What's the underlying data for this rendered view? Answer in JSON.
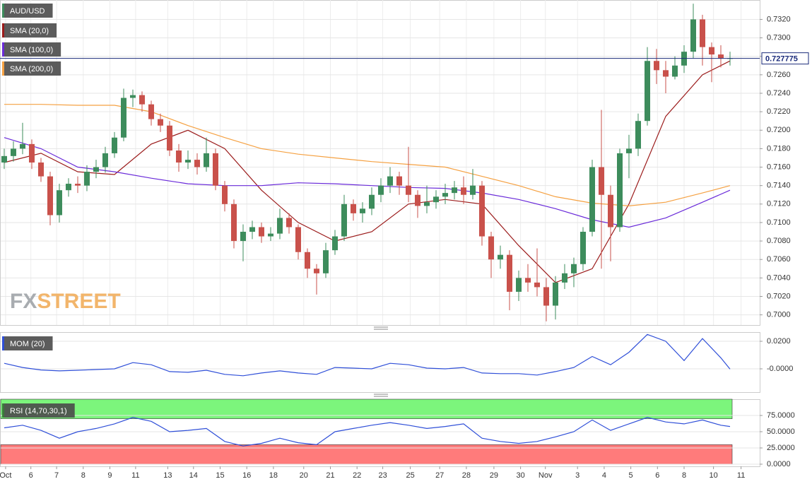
{
  "watermark": [
    "FX",
    "STREET"
  ],
  "chart_data": [
    {
      "type": "candlestick",
      "title": "AUD/USD",
      "color": "#3d8c5c",
      "down_color": "#c9514b",
      "grid": true,
      "last_price": 0.727775,
      "xlim": [
        -0.46,
        82.23
      ],
      "xticks": [
        {
          "value": 0.15,
          "label": "Oct"
        },
        {
          "value": 2.9,
          "label": "6"
        },
        {
          "value": 5.7,
          "label": "7"
        },
        {
          "value": 8.6,
          "label": "8"
        },
        {
          "value": 11.5,
          "label": "9"
        },
        {
          "value": 14.3,
          "label": "11"
        },
        {
          "value": 17.8,
          "label": "13"
        },
        {
          "value": 20.6,
          "label": "14"
        },
        {
          "value": 23.5,
          "label": "15"
        },
        {
          "value": 26.4,
          "label": "16"
        },
        {
          "value": 29.3,
          "label": "18"
        },
        {
          "value": 32.6,
          "label": "20"
        },
        {
          "value": 35.5,
          "label": "21"
        },
        {
          "value": 38.4,
          "label": "22"
        },
        {
          "value": 41.2,
          "label": "23"
        },
        {
          "value": 44.2,
          "label": "25"
        },
        {
          "value": 47.4,
          "label": "27"
        },
        {
          "value": 50.3,
          "label": "28"
        },
        {
          "value": 53.3,
          "label": "29"
        },
        {
          "value": 56.2,
          "label": "30"
        },
        {
          "value": 58.9,
          "label": "Nov"
        },
        {
          "value": 62.4,
          "label": "3"
        },
        {
          "value": 65.3,
          "label": "4"
        },
        {
          "value": 68.2,
          "label": "5"
        },
        {
          "value": 71.1,
          "label": "6"
        },
        {
          "value": 74,
          "label": "8"
        },
        {
          "value": 77.2,
          "label": "10"
        },
        {
          "value": 80.2,
          "label": "11"
        }
      ],
      "ylim": [
        0.6989,
        0.7341
      ],
      "yticks": [
        {
          "value": 0.7,
          "label": "0.7000"
        },
        {
          "value": 0.702,
          "label": "0.7020"
        },
        {
          "value": 0.704,
          "label": "0.7040"
        },
        {
          "value": 0.706,
          "label": "0.7060"
        },
        {
          "value": 0.708,
          "label": "0.7080"
        },
        {
          "value": 0.71,
          "label": "0.7100"
        },
        {
          "value": 0.712,
          "label": "0.7120"
        },
        {
          "value": 0.714,
          "label": "0.7140"
        },
        {
          "value": 0.716,
          "label": "0.7160"
        },
        {
          "value": 0.718,
          "label": "0.7180"
        },
        {
          "value": 0.72,
          "label": "0.7200"
        },
        {
          "value": 0.722,
          "label": "0.7220"
        },
        {
          "value": 0.724,
          "label": "0.7240"
        },
        {
          "value": 0.726,
          "label": "0.7260"
        },
        {
          "value": 0.728,
          "label": "0.7280"
        },
        {
          "value": 0.73,
          "label": "0.7300"
        },
        {
          "value": 0.732,
          "label": "0.7320"
        }
      ],
      "x": [
        0,
        1,
        2,
        3,
        4,
        5,
        6,
        7,
        8,
        9,
        10,
        11,
        12,
        13,
        14,
        15,
        16,
        17,
        18,
        19,
        20,
        21,
        22,
        23,
        24,
        25,
        26,
        27,
        28,
        29,
        30,
        31,
        32,
        33,
        34,
        35,
        36,
        37,
        38,
        39,
        40,
        41,
        42,
        43,
        44,
        45,
        46,
        47,
        48,
        49,
        50,
        51,
        52,
        53,
        54,
        55,
        56,
        57,
        58,
        59,
        60,
        61,
        62,
        63,
        64,
        65,
        66,
        67,
        68,
        69,
        70,
        71,
        72,
        73,
        74,
        75,
        76,
        77,
        78,
        79
      ],
      "open": [
        0.7165,
        0.7172,
        0.718,
        0.7185,
        0.7165,
        0.715,
        0.7108,
        0.7135,
        0.7142,
        0.714,
        0.7155,
        0.716,
        0.7175,
        0.7192,
        0.7235,
        0.7238,
        0.7228,
        0.7212,
        0.7205,
        0.7178,
        0.7165,
        0.7168,
        0.716,
        0.7175,
        0.714,
        0.712,
        0.708,
        0.709,
        0.7095,
        0.7085,
        0.7088,
        0.7105,
        0.7095,
        0.7068,
        0.705,
        0.7045,
        0.707,
        0.7085,
        0.712,
        0.711,
        0.7115,
        0.713,
        0.714,
        0.715,
        0.714,
        0.713,
        0.7118,
        0.7122,
        0.7128,
        0.7132,
        0.7138,
        0.713,
        0.714,
        0.7085,
        0.706,
        0.7065,
        0.7025,
        0.704,
        0.7035,
        0.703,
        0.701,
        0.7035,
        0.7045,
        0.7055,
        0.709,
        0.716,
        0.713,
        0.7095,
        0.7175,
        0.718,
        0.721,
        0.7275,
        0.7265,
        0.7258,
        0.727,
        0.7285,
        0.732,
        0.729,
        0.7282,
        0.7278
      ],
      "high": [
        0.718,
        0.7188,
        0.7208,
        0.719,
        0.717,
        0.7155,
        0.7142,
        0.7148,
        0.715,
        0.7162,
        0.7168,
        0.7182,
        0.7198,
        0.7245,
        0.7244,
        0.7242,
        0.7232,
        0.7218,
        0.721,
        0.7185,
        0.7178,
        0.7175,
        0.7192,
        0.718,
        0.7145,
        0.7125,
        0.7098,
        0.7102,
        0.71,
        0.7095,
        0.7115,
        0.711,
        0.7098,
        0.7072,
        0.7055,
        0.7078,
        0.7092,
        0.713,
        0.7125,
        0.7122,
        0.7138,
        0.7148,
        0.716,
        0.7155,
        0.7182,
        0.7135,
        0.714,
        0.7135,
        0.7142,
        0.7145,
        0.715,
        0.7158,
        0.7145,
        0.709,
        0.7075,
        0.707,
        0.7048,
        0.7055,
        0.7072,
        0.704,
        0.7042,
        0.7055,
        0.7062,
        0.7095,
        0.7168,
        0.7222,
        0.714,
        0.718,
        0.7195,
        0.7218,
        0.729,
        0.7288,
        0.7275,
        0.728,
        0.7292,
        0.7337,
        0.7325,
        0.7295,
        0.7292,
        0.7285
      ],
      "low": [
        0.7158,
        0.7166,
        0.7174,
        0.7158,
        0.7144,
        0.7097,
        0.71,
        0.7128,
        0.7132,
        0.7134,
        0.7148,
        0.7154,
        0.717,
        0.7188,
        0.7225,
        0.722,
        0.7205,
        0.7198,
        0.7172,
        0.7155,
        0.7158,
        0.7152,
        0.7155,
        0.7135,
        0.7112,
        0.7072,
        0.7058,
        0.7082,
        0.7078,
        0.708,
        0.7082,
        0.7088,
        0.706,
        0.704,
        0.7022,
        0.704,
        0.7065,
        0.708,
        0.7102,
        0.71,
        0.7108,
        0.7122,
        0.7132,
        0.713,
        0.7122,
        0.7105,
        0.711,
        0.7115,
        0.712,
        0.7125,
        0.712,
        0.7125,
        0.7075,
        0.704,
        0.705,
        0.7005,
        0.7015,
        0.7025,
        0.702,
        0.6993,
        0.6995,
        0.7028,
        0.703,
        0.7048,
        0.7085,
        0.705,
        0.7058,
        0.709,
        0.7148,
        0.7172,
        0.7205,
        0.725,
        0.724,
        0.7255,
        0.7262,
        0.7278,
        0.727,
        0.7252,
        0.7268,
        0.727
      ],
      "close": [
        0.7172,
        0.718,
        0.7185,
        0.7165,
        0.715,
        0.7108,
        0.7135,
        0.7142,
        0.714,
        0.7155,
        0.716,
        0.7175,
        0.7192,
        0.7235,
        0.7238,
        0.7228,
        0.7212,
        0.7205,
        0.7178,
        0.7165,
        0.7168,
        0.716,
        0.7175,
        0.714,
        0.712,
        0.708,
        0.709,
        0.7095,
        0.7085,
        0.7088,
        0.7105,
        0.7095,
        0.7068,
        0.705,
        0.7045,
        0.707,
        0.7085,
        0.712,
        0.711,
        0.7115,
        0.713,
        0.714,
        0.715,
        0.714,
        0.713,
        0.7118,
        0.7122,
        0.7128,
        0.7132,
        0.7138,
        0.713,
        0.714,
        0.7085,
        0.706,
        0.7065,
        0.7025,
        0.704,
        0.7035,
        0.703,
        0.701,
        0.7035,
        0.7045,
        0.7055,
        0.709,
        0.716,
        0.713,
        0.7095,
        0.7175,
        0.718,
        0.721,
        0.7275,
        0.7265,
        0.7258,
        0.727,
        0.7285,
        0.732,
        0.729,
        0.7282,
        0.7278,
        0.7278
      ],
      "series": [
        {
          "name": "SMA (20,0)",
          "color": "#9b1b1b",
          "x": [
            0,
            4,
            8,
            12,
            16,
            20,
            24,
            28,
            32,
            36,
            40,
            44,
            48,
            52,
            56,
            60,
            64,
            68,
            72,
            76,
            79
          ],
          "values": [
            0.7165,
            0.7175,
            0.7155,
            0.7152,
            0.7185,
            0.72,
            0.718,
            0.7135,
            0.71,
            0.708,
            0.709,
            0.712,
            0.7125,
            0.712,
            0.7075,
            0.7035,
            0.705,
            0.712,
            0.7215,
            0.726,
            0.7275
          ]
        },
        {
          "name": "SMA (100,0)",
          "color": "#6a2bd9",
          "x": [
            0,
            4,
            8,
            12,
            16,
            20,
            24,
            28,
            32,
            36,
            40,
            44,
            48,
            52,
            56,
            60,
            64,
            68,
            72,
            76,
            79
          ],
          "values": [
            0.7192,
            0.718,
            0.716,
            0.7155,
            0.7148,
            0.7142,
            0.714,
            0.714,
            0.7143,
            0.7142,
            0.714,
            0.7138,
            0.7137,
            0.7132,
            0.7125,
            0.7115,
            0.7103,
            0.7095,
            0.7105,
            0.7122,
            0.7135
          ]
        },
        {
          "name": "SMA (200,0)",
          "color": "#f5a142",
          "x": [
            0,
            4,
            8,
            12,
            16,
            20,
            24,
            28,
            32,
            36,
            40,
            44,
            48,
            52,
            56,
            60,
            64,
            68,
            72,
            76,
            79
          ],
          "values": [
            0.7228,
            0.7228,
            0.7227,
            0.7227,
            0.722,
            0.7205,
            0.7192,
            0.718,
            0.7174,
            0.717,
            0.7166,
            0.7163,
            0.716,
            0.715,
            0.714,
            0.7128,
            0.7121,
            0.7118,
            0.7122,
            0.7132,
            0.714
          ]
        }
      ]
    },
    {
      "type": "line",
      "title": "MOM (20)",
      "color": "#2f4fd8",
      "ylim": [
        -0.01692,
        0.02667
      ],
      "yticks": [
        {
          "value": 0,
          "label": "-0.0000"
        },
        {
          "value": 0.02,
          "label": "0.0200"
        }
      ],
      "x": [
        0,
        2,
        4,
        6,
        8,
        10,
        12,
        14,
        16,
        18,
        20,
        22,
        24,
        26,
        28,
        30,
        32,
        34,
        36,
        38,
        40,
        42,
        44,
        46,
        48,
        50,
        52,
        54,
        56,
        58,
        60,
        62,
        64,
        66,
        68,
        70,
        72,
        74,
        76,
        78,
        79
      ],
      "values": [
        0.004,
        0.001,
        -0.0008,
        -0.0015,
        -0.001,
        -0.0005,
        0,
        0.0045,
        0.003,
        -0.002,
        -0.0025,
        -0.001,
        -0.004,
        -0.005,
        -0.003,
        -0.0015,
        -0.003,
        -0.004,
        0.001,
        0.0005,
        0,
        0.004,
        0.003,
        0.0005,
        0,
        0.001,
        -0.003,
        -0.0035,
        -0.0035,
        -0.0045,
        -0.002,
        0.001,
        0.009,
        0.003,
        0.012,
        0.025,
        0.02,
        0.006,
        0.022,
        0.008,
        -0.0002
      ]
    },
    {
      "type": "line",
      "title": "RSI (14,70,30,1)",
      "color": "#2f4fd8",
      "overbought": 70,
      "oversold": 30,
      "overbought_color": "#7cf57c",
      "oversold_color": "#ff7b7b",
      "ylim": [
        -3.3,
        100
      ],
      "yticks": [
        {
          "value": 0,
          "label": "0.0000"
        },
        {
          "value": 25,
          "label": "25.0000"
        },
        {
          "value": 50,
          "label": "50.0000"
        },
        {
          "value": 75,
          "label": "75.0000"
        }
      ],
      "x": [
        0,
        2,
        4,
        6,
        8,
        10,
        12,
        14,
        16,
        18,
        20,
        22,
        24,
        26,
        28,
        30,
        32,
        34,
        36,
        38,
        40,
        42,
        44,
        46,
        48,
        50,
        52,
        54,
        56,
        58,
        60,
        62,
        64,
        66,
        68,
        70,
        72,
        74,
        76,
        78,
        79
      ],
      "values": [
        56,
        60,
        52,
        40,
        50,
        55,
        62,
        72,
        66,
        50,
        52,
        55,
        35,
        28,
        32,
        40,
        33,
        30,
        50,
        55,
        60,
        64,
        60,
        55,
        58,
        62,
        40,
        35,
        32,
        35,
        42,
        50,
        68,
        52,
        62,
        72,
        65,
        62,
        68,
        60,
        58
      ]
    }
  ]
}
